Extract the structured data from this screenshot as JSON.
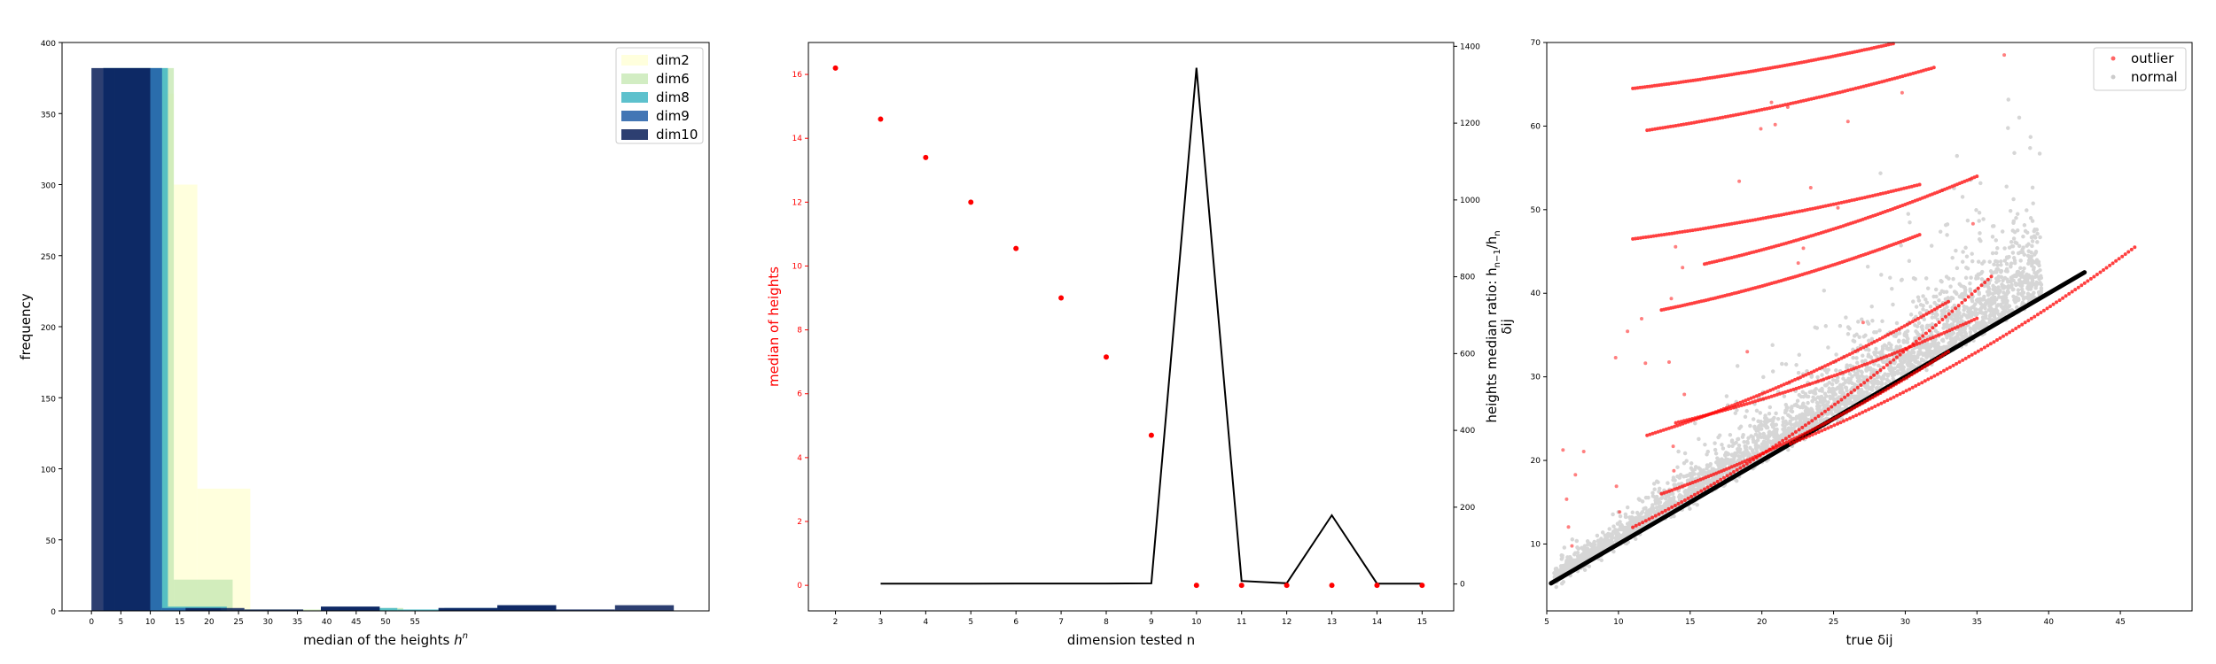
{
  "chart_data": [
    {
      "type": "bar",
      "title": "",
      "xlabel_prefix": "median of the heights ",
      "xlabel_sym": "h",
      "xlabel_sup": "n",
      "ylabel": "frequency",
      "xlim": [
        -5,
        105
      ],
      "ylim": [
        0,
        400
      ],
      "xticks": [
        0,
        5,
        10,
        15,
        20,
        25,
        30,
        35,
        40,
        45,
        50,
        55
      ],
      "yticks": [
        0,
        50,
        100,
        150,
        200,
        250,
        300,
        350,
        400
      ],
      "legend_position": "top-right",
      "series": [
        {
          "name": "dim2",
          "color": "#ffffd9",
          "opacity": 0.9,
          "bins": [
            [
              2,
              4,
              382
            ],
            [
              4,
              10,
              382
            ],
            [
              10,
              14,
              364
            ],
            [
              14,
              18,
              300
            ],
            [
              18,
              27,
              86
            ]
          ]
        },
        {
          "name": "dim6",
          "color": "#c7e9b4",
          "opacity": 0.8,
          "bins": [
            [
              2,
              4,
              382
            ],
            [
              4,
              10,
              382
            ],
            [
              10,
              14,
              382
            ],
            [
              14,
              24,
              22
            ],
            [
              24,
              48,
              1
            ],
            [
              48,
              53,
              2
            ]
          ]
        },
        {
          "name": "dim8",
          "color": "#41b6c4",
          "opacity": 0.85,
          "bins": [
            [
              2,
              4,
              382
            ],
            [
              4,
              10,
              382
            ],
            [
              10,
              13,
              382
            ],
            [
              13,
              23,
              3
            ],
            [
              42,
              52,
              2
            ],
            [
              52,
              62,
              1
            ],
            [
              60,
              70,
              2
            ]
          ]
        },
        {
          "name": "dim9",
          "color": "#225ea8",
          "opacity": 0.85,
          "bins": [
            [
              2,
              4,
              382
            ],
            [
              4,
              10,
              382
            ],
            [
              10,
              12,
              382
            ],
            [
              12,
              22,
              2
            ],
            [
              39,
              49,
              3
            ],
            [
              59,
              69,
              2
            ],
            [
              69,
              79,
              4
            ]
          ]
        },
        {
          "name": "dim10",
          "color": "#081d58",
          "opacity": 0.85,
          "bins": [
            [
              0,
              2,
              382
            ],
            [
              2,
              10,
              382
            ],
            [
              16,
              26,
              2
            ],
            [
              26,
              36,
              1
            ],
            [
              39,
              49,
              3
            ],
            [
              59,
              69,
              2
            ],
            [
              69,
              79,
              4
            ],
            [
              79,
              89,
              1
            ],
            [
              89,
              99,
              4
            ]
          ]
        }
      ]
    },
    {
      "type": "line",
      "title": "",
      "xlabel": "dimension tested n",
      "ylabel_left": "median of heights",
      "ylabel_right_prefix": "heights median ratio: h",
      "ylabel_right_sub": "n−1",
      "ylabel_right_mid": "/h",
      "ylabel_right_sub2": "n",
      "xlim": [
        1.4,
        15.7
      ],
      "ylim_left": [
        -0.8,
        17
      ],
      "ylim_right": [
        -70,
        1410
      ],
      "xticks": [
        2,
        3,
        4,
        5,
        6,
        7,
        8,
        9,
        10,
        11,
        12,
        13,
        14,
        15
      ],
      "yticks_left": [
        0,
        2,
        4,
        6,
        8,
        10,
        12,
        14,
        16
      ],
      "yticks_right": [
        0,
        200,
        400,
        600,
        800,
        1000,
        1200,
        1400
      ],
      "left_axis_color": "#ff0000",
      "median_points": {
        "x": [
          2,
          3,
          4,
          5,
          6,
          7,
          8,
          9,
          10,
          11,
          12,
          13,
          14,
          15
        ],
        "y": [
          16.2,
          14.6,
          13.4,
          12.0,
          10.55,
          9.0,
          7.15,
          4.7,
          0.0,
          0.0,
          0.0,
          0.0,
          0.0,
          0.0
        ]
      },
      "ratio_line": {
        "x": [
          3,
          4,
          5,
          6,
          7,
          8,
          9,
          10,
          11,
          12,
          13,
          14,
          15
        ],
        "y": [
          1.1,
          1.1,
          1.1,
          1.2,
          1.2,
          1.3,
          1.7,
          1344,
          8,
          2,
          179,
          1,
          1
        ]
      }
    },
    {
      "type": "scatter",
      "title": "",
      "xlabel": "true δij",
      "ylabel": "δij",
      "xlim": [
        5,
        50
      ],
      "ylim": [
        2,
        70
      ],
      "xticks": [
        5,
        10,
        15,
        20,
        25,
        30,
        35,
        40,
        45
      ],
      "yticks": [
        10,
        20,
        30,
        40,
        50,
        60,
        70
      ],
      "legend_position": "top-right",
      "series": [
        {
          "name": "outlier",
          "color": "#ff0000"
        },
        {
          "name": "normal",
          "color": "#000000"
        }
      ],
      "identity_line": {
        "x": [
          5.3,
          42.5
        ],
        "y": [
          5.3,
          42.5
        ]
      },
      "outlier_curves": [
        {
          "x": [
            11,
            29.5
          ],
          "y": [
            64.5,
            70
          ]
        },
        {
          "x": [
            12,
            32
          ],
          "y": [
            59.5,
            67
          ]
        },
        {
          "x": [
            11,
            31
          ],
          "y": [
            46.5,
            53
          ]
        },
        {
          "x": [
            16,
            35
          ],
          "y": [
            43.5,
            54
          ]
        },
        {
          "x": [
            13,
            31
          ],
          "y": [
            38,
            47
          ]
        },
        {
          "x": [
            14,
            35
          ],
          "y": [
            24.5,
            37
          ]
        },
        {
          "x": [
            12,
            33
          ],
          "y": [
            23,
            39
          ]
        },
        {
          "x": [
            13,
            33
          ],
          "y": [
            16,
            33
          ]
        },
        {
          "x": [
            11,
            36
          ],
          "y": [
            12,
            42
          ]
        },
        {
          "x": [
            22,
            46
          ],
          "y": [
            22,
            45.5
          ]
        }
      ]
    }
  ]
}
